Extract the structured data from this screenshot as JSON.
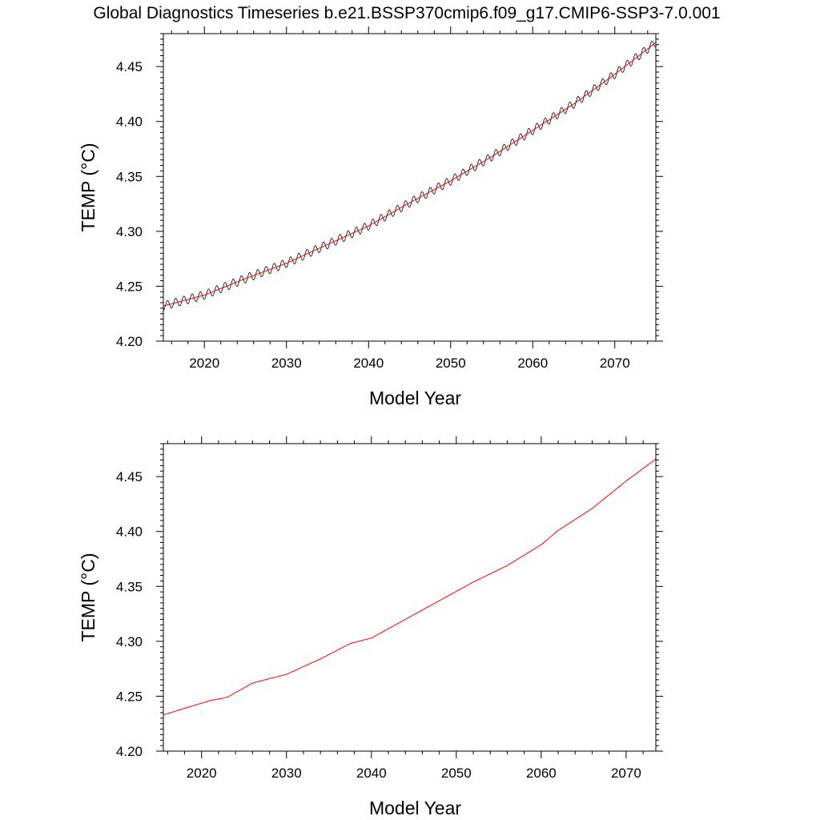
{
  "page_title": "Global Diagnostics Timeseries b.e21.BSSP370cmip6.f09_g17.CMIP6-SSP3-7.0.001",
  "colors": {
    "raw_series": "#000000",
    "smoothed_series": "#ff0000",
    "frame": "#000000"
  },
  "chart_data": [
    {
      "type": "line",
      "xlabel": "Model Year",
      "ylabel": "TEMP (°C)",
      "xlim": [
        2015,
        2075
      ],
      "ylim": [
        4.2,
        4.48
      ],
      "xticks": [
        2020,
        2030,
        2040,
        2050,
        2060,
        2070
      ],
      "yticks": [
        4.2,
        4.25,
        4.3,
        4.35,
        4.4,
        4.45
      ],
      "xtick_labels": [
        "2020",
        "2030",
        "2040",
        "2050",
        "2060",
        "2070"
      ],
      "ytick_labels": [
        "4.20",
        "4.25",
        "4.30",
        "4.35",
        "4.40",
        "4.45"
      ],
      "grid": false,
      "series": [
        {
          "color": "#000000",
          "seasonal_amplitude": 0.004,
          "x": [
            2015,
            2020,
            2025,
            2030,
            2035,
            2040,
            2045,
            2050,
            2055,
            2060,
            2065,
            2070,
            2075
          ],
          "values": [
            4.232,
            4.242,
            4.257,
            4.271,
            4.288,
            4.305,
            4.326,
            4.346,
            4.368,
            4.392,
            4.416,
            4.443,
            4.472
          ]
        },
        {
          "color": "#ff0000",
          "x": [
            2015,
            2020,
            2025,
            2030,
            2035,
            2040,
            2045,
            2050,
            2055,
            2060,
            2065,
            2070,
            2075
          ],
          "values": [
            4.232,
            4.242,
            4.257,
            4.271,
            4.288,
            4.305,
            4.326,
            4.346,
            4.368,
            4.392,
            4.416,
            4.443,
            4.472
          ]
        }
      ]
    },
    {
      "type": "line",
      "xlabel": "Model Year",
      "ylabel": "TEMP (°C)",
      "xlim": [
        2015.5,
        2073.5
      ],
      "ylim": [
        4.2,
        4.48
      ],
      "xticks": [
        2020,
        2030,
        2040,
        2050,
        2060,
        2070
      ],
      "yticks": [
        4.2,
        4.25,
        4.3,
        4.35,
        4.4,
        4.45
      ],
      "xtick_labels": [
        "2020",
        "2030",
        "2040",
        "2050",
        "2060",
        "2070"
      ],
      "ytick_labels": [
        "4.20",
        "4.25",
        "4.30",
        "4.35",
        "4.40",
        "4.45"
      ],
      "grid": false,
      "series": [
        {
          "color": "#ff0000",
          "x": [
            2015.5,
            2018,
            2021,
            2023,
            2026,
            2030,
            2034,
            2037.5,
            2040,
            2044,
            2048,
            2052,
            2056,
            2060,
            2062,
            2066,
            2070,
            2073.5
          ],
          "values": [
            4.233,
            4.239,
            4.246,
            4.249,
            4.262,
            4.27,
            4.284,
            4.298,
            4.303,
            4.32,
            4.337,
            4.354,
            4.369,
            4.388,
            4.401,
            4.421,
            4.446,
            4.466
          ]
        }
      ]
    }
  ]
}
